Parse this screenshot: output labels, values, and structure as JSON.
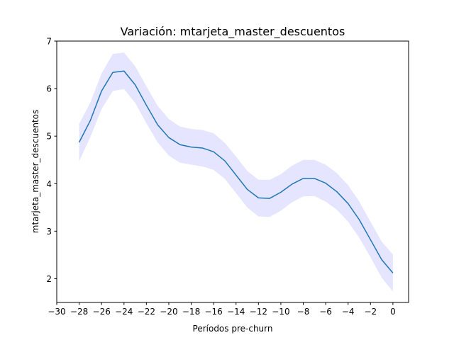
{
  "chart_data": {
    "type": "line",
    "title": "Variación: mtarjeta_master_descuentos",
    "xlabel": "Períodos pre-churn",
    "ylabel": "mtarjeta_master_descuentos",
    "xlim": [
      -30,
      1.4
    ],
    "ylim": [
      1.5,
      7
    ],
    "xticks": [
      -30,
      -28,
      -26,
      -24,
      -22,
      -20,
      -18,
      -16,
      -14,
      -12,
      -10,
      -8,
      -6,
      -4,
      -2,
      0
    ],
    "xtick_labels": [
      "−30",
      "−28",
      "−26",
      "−24",
      "−22",
      "−20",
      "−18",
      "−16",
      "−14",
      "−12",
      "−10",
      "−8",
      "−6",
      "−4",
      "−2",
      "0"
    ],
    "yticks": [
      2,
      3,
      4,
      5,
      6,
      7
    ],
    "ytick_labels": [
      "2",
      "3",
      "4",
      "5",
      "6",
      "7"
    ],
    "grid": false,
    "colors": {
      "line": "#1f77b4",
      "band": "#0000ff"
    },
    "series": [
      {
        "x": [
          -28,
          -27,
          -26,
          -25,
          -24,
          -23,
          -22,
          -21,
          -20,
          -19,
          -18,
          -17,
          -16,
          -15,
          -14,
          -13,
          -12,
          -11,
          -10,
          -9,
          -8,
          -7,
          -6,
          -5,
          -4,
          -3,
          -2,
          -1,
          0
        ],
        "y": [
          4.87,
          5.33,
          5.95,
          6.34,
          6.37,
          6.08,
          5.65,
          5.24,
          4.97,
          4.82,
          4.77,
          4.75,
          4.67,
          4.48,
          4.18,
          3.88,
          3.7,
          3.69,
          3.82,
          3.99,
          4.11,
          4.11,
          4.01,
          3.83,
          3.58,
          3.24,
          2.82,
          2.4,
          2.12
        ],
        "lower": [
          4.47,
          4.98,
          5.57,
          5.95,
          5.99,
          5.7,
          5.27,
          4.87,
          4.59,
          4.44,
          4.4,
          4.36,
          4.29,
          4.1,
          3.8,
          3.5,
          3.31,
          3.3,
          3.43,
          3.61,
          3.73,
          3.74,
          3.62,
          3.45,
          3.2,
          2.86,
          2.45,
          2.02,
          1.73
        ],
        "upper": [
          5.26,
          5.71,
          6.32,
          6.73,
          6.76,
          6.47,
          6.05,
          5.64,
          5.36,
          5.2,
          5.15,
          5.13,
          5.06,
          4.86,
          4.57,
          4.27,
          4.08,
          4.08,
          4.2,
          4.38,
          4.5,
          4.5,
          4.4,
          4.22,
          3.97,
          3.62,
          3.2,
          2.78,
          2.51
        ]
      }
    ]
  }
}
